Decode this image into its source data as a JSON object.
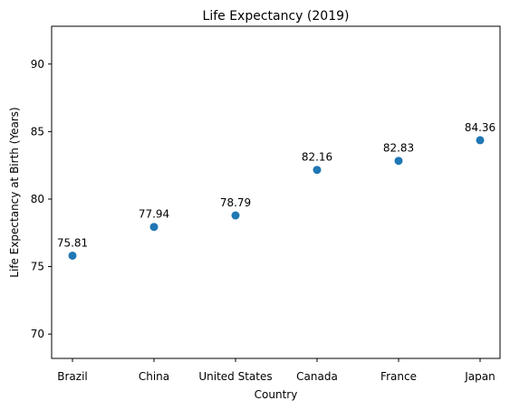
{
  "chart_data": {
    "type": "scatter",
    "title": "Life Expectancy (2019)",
    "xlabel": "Country",
    "ylabel": "Life Expectancy at Birth (Years)",
    "categories": [
      "Brazil",
      "China",
      "United States",
      "Canada",
      "France",
      "Japan"
    ],
    "values": [
      75.81,
      77.94,
      78.79,
      82.16,
      82.83,
      84.36
    ],
    "data_labels": [
      "75.81",
      "77.94",
      "78.79",
      "82.16",
      "82.83",
      "84.36"
    ],
    "ylim": [
      68.2,
      92.8
    ],
    "yticks": [
      70,
      75,
      80,
      85,
      90
    ],
    "ytick_labels": [
      "70",
      "75",
      "80",
      "85",
      "90"
    ],
    "grid": false,
    "marker_color": "#1f77b4"
  }
}
